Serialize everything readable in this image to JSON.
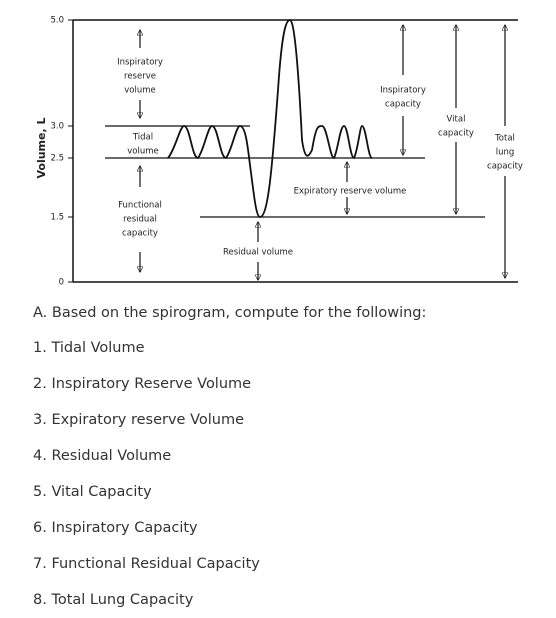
{
  "diagram": {
    "y_axis_label": "Volume, L",
    "y_ticks": [
      "5.0",
      "3.0",
      "2.5",
      "1.5",
      "0"
    ],
    "labels": {
      "inspiratory_reserve_volume": [
        "Inspiratory",
        "reserve",
        "volume"
      ],
      "tidal_volume": [
        "Tidal",
        "volume"
      ],
      "functional_residual_capacity": [
        "Functional",
        "residual",
        "capacity"
      ],
      "residual_volume": [
        "Residual volume"
      ],
      "expiratory_reserve_volume": [
        "Expiratory reserve volume"
      ],
      "inspiratory_capacity": [
        "Inspiratory",
        "capacity"
      ],
      "vital_capacity": [
        "Vital",
        "capacity"
      ],
      "total_lung_capacity": [
        "Total",
        "lung",
        "capacity"
      ]
    }
  },
  "questions": {
    "heading": "A. Based on the spirogram, compute for the following:",
    "items": [
      "1. Tidal Volume",
      "2. Inspiratory Reserve Volume",
      "3. Expiratory reserve Volume",
      "4. Residual Volume",
      "5. Vital Capacity",
      "6. Inspiratory Capacity",
      "7. Functional Residual Capacity",
      "8. Total Lung Capacity"
    ]
  }
}
